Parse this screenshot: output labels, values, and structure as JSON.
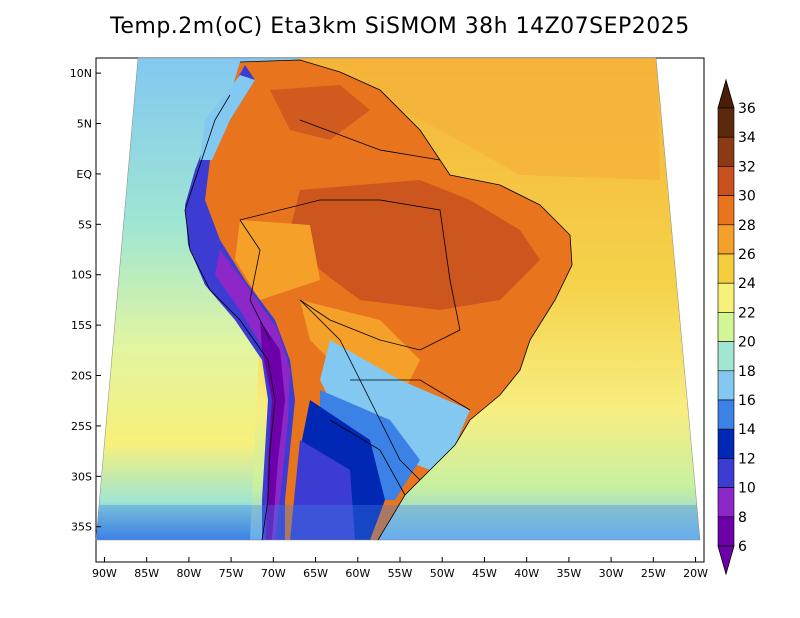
{
  "title": "Temp.2m(oC) Eta3km SiSMOM 38h 14Z07SEP2025",
  "map": {
    "lat_labels": [
      "10N",
      "5N",
      "EQ",
      "5S",
      "10S",
      "15S",
      "20S",
      "25S",
      "30S",
      "35S"
    ],
    "lon_labels": [
      "90W",
      "85W",
      "80W",
      "75W",
      "70W",
      "65W",
      "60W",
      "55W",
      "50W",
      "45W",
      "40W",
      "35W",
      "30W",
      "25W",
      "20W"
    ],
    "lat_values": [
      10,
      5,
      0,
      -5,
      -10,
      -15,
      -20,
      -25,
      -30,
      -35
    ],
    "lon_values": [
      -90,
      -85,
      -80,
      -75,
      -70,
      -65,
      -60,
      -55,
      -50,
      -45,
      -40,
      -35,
      -30,
      -25,
      -20
    ],
    "lon_range": [
      -91,
      -19
    ],
    "lat_range": [
      -38.5,
      11.5
    ]
  },
  "colorbar": {
    "labels": [
      "36",
      "34",
      "32",
      "30",
      "28",
      "26",
      "24",
      "22",
      "20",
      "18",
      "16",
      "14",
      "12",
      "10",
      "8",
      "6"
    ],
    "colors": [
      "#5a2a0a",
      "#8b3a14",
      "#c8501e",
      "#e8741e",
      "#f5a028",
      "#f5cc3c",
      "#f7f07a",
      "#d2f596",
      "#a0e6d2",
      "#82c8f0",
      "#3c82e6",
      "#0028b4",
      "#3c3cd2",
      "#8c28c8",
      "#6e00aa"
    ],
    "top_color": "#4a1e06",
    "bottom_color": "#6e00aa"
  }
}
